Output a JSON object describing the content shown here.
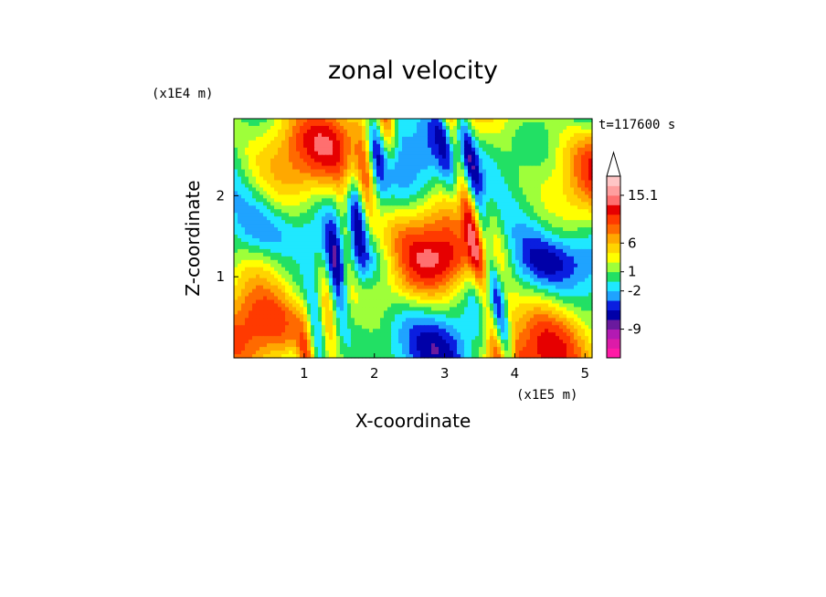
{
  "chart_data": {
    "type": "heatmap",
    "title": "zonal velocity",
    "xlabel": "X-coordinate",
    "ylabel": "Z-coordinate",
    "x_scale_note": "(x1E5 m)",
    "y_scale_note": "(x1E4 m)",
    "time_label": "t=117600 s",
    "x_ticks": [
      "1",
      "2",
      "3",
      "4",
      "5"
    ],
    "y_ticks": [
      "1",
      "2"
    ],
    "xlim": [
      0,
      5.1
    ],
    "ylim": [
      0,
      2.95
    ],
    "colorbar": {
      "tick_labels": [
        "15.1",
        "6",
        "1",
        "-2",
        "-9"
      ],
      "level_colors": [
        "#ff1aa6",
        "#dd1ba8",
        "#b31ab3",
        "#6a1a9e",
        "#0000a8",
        "#0a1ee0",
        "#1fa3ff",
        "#1fe8ff",
        "#22e064",
        "#9eff3a",
        "#ffff00",
        "#ffd400",
        "#ffa800",
        "#ff6a00",
        "#ff3a00",
        "#e60000",
        "#ff6f6f",
        "#ff9f9f",
        "#ffc6c6"
      ],
      "extend": "max"
    }
  }
}
